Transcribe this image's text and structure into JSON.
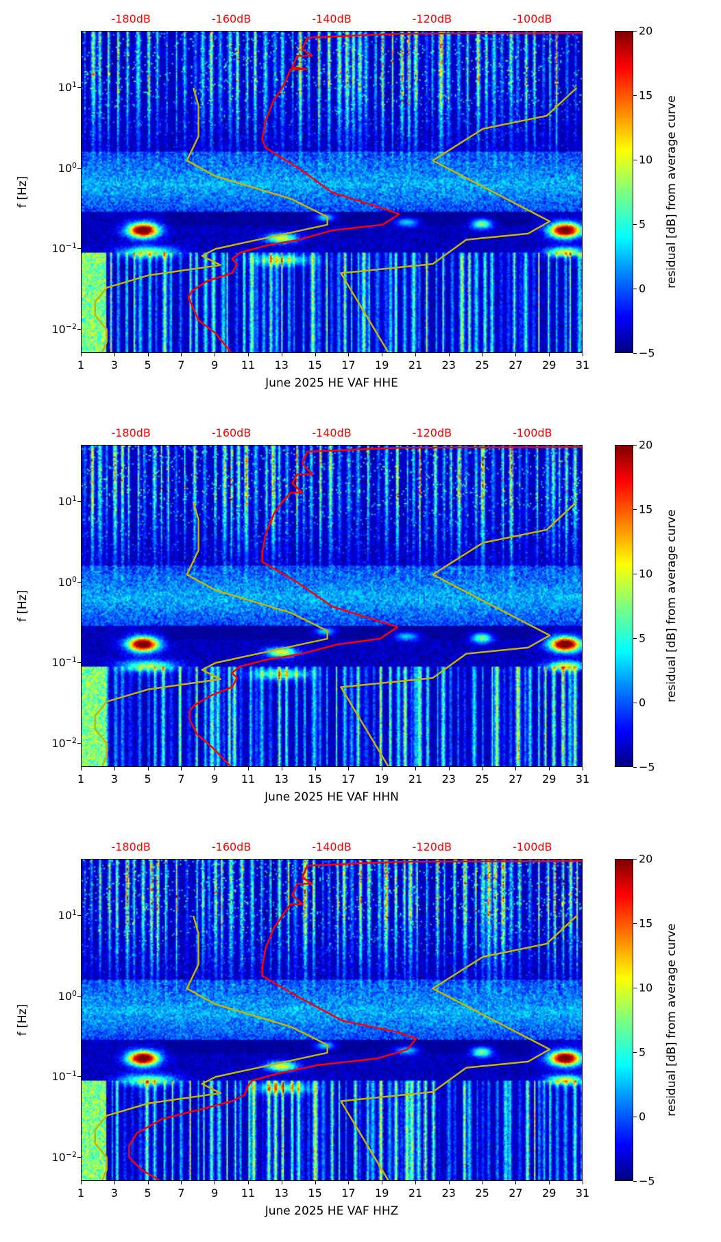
{
  "chart_data": {
    "type": "heatmap",
    "x_range": [
      1,
      31
    ],
    "y_range": [
      0.005,
      50
    ],
    "y_scale": "log",
    "ylabel": "f [Hz]",
    "x_ticks": [
      1,
      3,
      5,
      7,
      9,
      11,
      13,
      15,
      17,
      19,
      21,
      23,
      25,
      27,
      29,
      31
    ],
    "y_ticks": [
      {
        "base": "10",
        "exp": "−2",
        "value": 0.01
      },
      {
        "base": "10",
        "exp": "−1",
        "value": 0.1
      },
      {
        "base": "10",
        "exp": "0",
        "value": 1
      },
      {
        "base": "10",
        "exp": "1",
        "value": 10
      }
    ],
    "top_axis": {
      "color": "#ff0000",
      "ticks": [
        {
          "label": "-180dB",
          "value": -180
        },
        {
          "label": "-160dB",
          "value": -160
        },
        {
          "label": "-140dB",
          "value": -140
        },
        {
          "label": "-120dB",
          "value": -120
        },
        {
          "label": "-100dB",
          "value": -100
        }
      ]
    },
    "colorbar": {
      "label": "residual [dB] from average curve",
      "range": [
        -5,
        20
      ],
      "ticks": [
        {
          "label": "−5",
          "value": -5
        },
        {
          "label": "0",
          "value": 0
        },
        {
          "label": "5",
          "value": 5
        },
        {
          "label": "10",
          "value": 10
        },
        {
          "label": "15",
          "value": 15
        },
        {
          "label": "20",
          "value": 20
        }
      ],
      "colormap": "jet"
    },
    "nlnm_color": "#c8b400",
    "average_color": "#ff0000",
    "nlnm": [
      [
        -186,
        0.005
      ],
      [
        -185,
        0.007
      ],
      [
        -185,
        0.01
      ],
      [
        -187.3,
        0.015
      ],
      [
        -187.3,
        0.022
      ],
      [
        -185,
        0.033
      ],
      [
        -176.7,
        0.047
      ],
      [
        -162.3,
        0.063
      ],
      [
        -166,
        0.082
      ],
      [
        -163.3,
        0.1
      ],
      [
        -141,
        0.2
      ],
      [
        -141,
        0.25
      ],
      [
        -148.3,
        0.42
      ],
      [
        -163.3,
        0.8
      ],
      [
        -169,
        1.25
      ],
      [
        -166.7,
        2.5
      ],
      [
        -166.7,
        6
      ],
      [
        -167.7,
        10
      ]
    ],
    "nhnm": [
      [
        -128.7,
        0.005
      ],
      [
        -138.3,
        0.05
      ],
      [
        -120,
        0.065
      ],
      [
        -113.3,
        0.13
      ],
      [
        -101,
        0.155
      ],
      [
        -96.7,
        0.22
      ],
      [
        -120,
        1.25
      ],
      [
        -110,
        3.1
      ],
      [
        -97.3,
        4.5
      ],
      [
        -91.3,
        10
      ]
    ],
    "panels": [
      {
        "title": "June 2025 HE VAF  HHE",
        "average_curve": [
          [
            -160,
            0.005
          ],
          [
            -163.3,
            0.009
          ],
          [
            -166.7,
            0.013
          ],
          [
            -168,
            0.02
          ],
          [
            -168.7,
            0.025
          ],
          [
            -168,
            0.03
          ],
          [
            -165,
            0.04
          ],
          [
            -160,
            0.05
          ],
          [
            -159,
            0.065
          ],
          [
            -160,
            0.075
          ],
          [
            -158.3,
            0.09
          ],
          [
            -153.3,
            0.11
          ],
          [
            -146.7,
            0.13
          ],
          [
            -140,
            0.17
          ],
          [
            -130,
            0.2
          ],
          [
            -126.7,
            0.27
          ],
          [
            -130,
            0.32
          ],
          [
            -140,
            0.5
          ],
          [
            -146.7,
            1
          ],
          [
            -153.3,
            1.8
          ],
          [
            -154,
            2.3
          ],
          [
            -153.3,
            4
          ],
          [
            -151.7,
            7
          ],
          [
            -150,
            10
          ],
          [
            -148.3,
            17
          ],
          [
            -145,
            17
          ],
          [
            -148,
            18
          ],
          [
            -147,
            25
          ],
          [
            -144,
            25
          ],
          [
            -146,
            30
          ],
          [
            -145,
            42
          ],
          [
            -126.7,
            47
          ],
          [
            -90,
            48
          ]
        ]
      },
      {
        "title": "June 2025 HE VAF  HHN",
        "average_curve": [
          [
            -160,
            0.005
          ],
          [
            -164,
            0.009
          ],
          [
            -167,
            0.013
          ],
          [
            -168.5,
            0.02
          ],
          [
            -168.5,
            0.025
          ],
          [
            -167.5,
            0.03
          ],
          [
            -164,
            0.04
          ],
          [
            -160,
            0.05
          ],
          [
            -159,
            0.065
          ],
          [
            -160,
            0.075
          ],
          [
            -158.5,
            0.09
          ],
          [
            -153,
            0.11
          ],
          [
            -146,
            0.13
          ],
          [
            -139,
            0.17
          ],
          [
            -130.5,
            0.2
          ],
          [
            -127,
            0.28
          ],
          [
            -130,
            0.32
          ],
          [
            -140,
            0.5
          ],
          [
            -147,
            1
          ],
          [
            -154,
            1.8
          ],
          [
            -154,
            2.3
          ],
          [
            -153.3,
            4
          ],
          [
            -151.7,
            7
          ],
          [
            -150,
            10
          ],
          [
            -148.3,
            13
          ],
          [
            -146,
            13
          ],
          [
            -148,
            17
          ],
          [
            -147,
            22
          ],
          [
            -144,
            22
          ],
          [
            -146,
            30
          ],
          [
            -145,
            42
          ],
          [
            -126.7,
            47
          ],
          [
            -90,
            48
          ]
        ]
      },
      {
        "title": "June 2025 HE VAF  HHZ",
        "average_curve": [
          [
            -174,
            0.005
          ],
          [
            -178,
            0.007
          ],
          [
            -180.5,
            0.01
          ],
          [
            -180.5,
            0.014
          ],
          [
            -179,
            0.02
          ],
          [
            -174,
            0.03
          ],
          [
            -166,
            0.04
          ],
          [
            -160,
            0.05
          ],
          [
            -157.5,
            0.06
          ],
          [
            -157,
            0.075
          ],
          [
            -156,
            0.09
          ],
          [
            -151,
            0.11
          ],
          [
            -143,
            0.14
          ],
          [
            -131,
            0.17
          ],
          [
            -125,
            0.22
          ],
          [
            -123.3,
            0.3
          ],
          [
            -127,
            0.36
          ],
          [
            -138,
            0.5
          ],
          [
            -147,
            1
          ],
          [
            -154,
            1.8
          ],
          [
            -154,
            2.3
          ],
          [
            -153.3,
            4
          ],
          [
            -151.7,
            7
          ],
          [
            -150,
            10
          ],
          [
            -148.3,
            14
          ],
          [
            -146,
            14
          ],
          [
            -148,
            18
          ],
          [
            -147,
            25
          ],
          [
            -144,
            25
          ],
          [
            -146,
            30
          ],
          [
            -145,
            42
          ],
          [
            -126.7,
            47
          ],
          [
            -90,
            48
          ]
        ]
      }
    ]
  }
}
